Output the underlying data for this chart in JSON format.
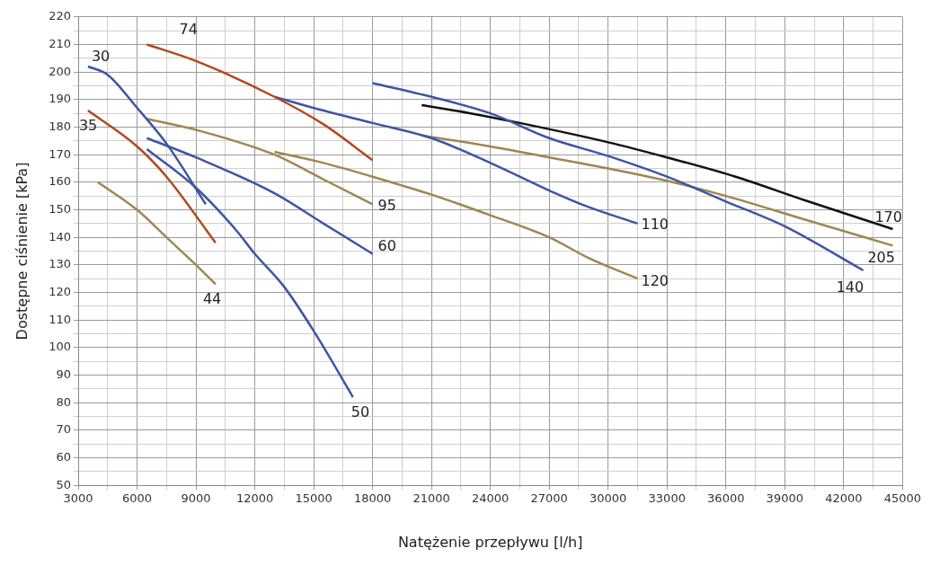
{
  "chart_data": {
    "type": "line",
    "xlabel": "Natężenie przepływu [l/h]",
    "ylabel": "Dostępne ciśnienie [kPa]",
    "xlim": [
      3000,
      45000
    ],
    "xticks": [
      3000,
      {
        "value": 4500,
        "label": null
      },
      6000,
      {
        "value": 7500,
        "label": null
      },
      9000,
      {
        "value": 10500,
        "label": null
      },
      12000,
      {
        "value": 13500,
        "label": null
      },
      15000,
      {
        "value": 16500,
        "label": null
      },
      18000,
      {
        "value": 19500,
        "label": null
      },
      21000,
      {
        "value": 22500,
        "label": null
      },
      24000,
      {
        "value": 25500,
        "label": null
      },
      27000,
      {
        "value": 28500,
        "label": null
      },
      30000,
      {
        "value": 31500,
        "label": null
      },
      33000,
      {
        "value": 34500,
        "label": null
      },
      36000,
      {
        "value": 37500,
        "label": null
      },
      39000,
      {
        "value": 40500,
        "label": null
      },
      42000,
      {
        "value": 43500,
        "label": null
      },
      45000
    ],
    "ylim": [
      50,
      220
    ],
    "yticks": [
      50,
      {
        "value": 55,
        "label": null
      },
      60,
      {
        "value": 65,
        "label": null
      },
      70,
      {
        "value": 75,
        "label": null
      },
      80,
      {
        "value": 85,
        "label": null
      },
      90,
      {
        "value": 95,
        "label": null
      },
      100,
      {
        "value": 105,
        "label": null
      },
      110,
      {
        "value": 115,
        "label": null
      },
      120,
      {
        "value": 125,
        "label": null
      },
      130,
      {
        "value": 135,
        "label": null
      },
      140,
      {
        "value": 145,
        "label": null
      },
      150,
      {
        "value": 155,
        "label": null
      },
      160,
      {
        "value": 165,
        "label": null
      },
      170,
      {
        "value": 175,
        "label": null
      },
      180,
      {
        "value": 185,
        "label": null
      },
      190,
      {
        "value": 195,
        "label": null
      },
      200,
      {
        "value": 205,
        "label": null
      },
      210,
      {
        "value": 215,
        "label": null
      },
      220
    ],
    "grid": true,
    "legend": false,
    "marker": "none",
    "line_style": "solid",
    "series": [
      {
        "name": "30",
        "color": "#3d55a5",
        "x": [
          3500,
          4500,
          6000,
          7500,
          9500
        ],
        "values": [
          202,
          199,
          187,
          174,
          152
        ]
      },
      {
        "name": "35",
        "color": "#b5471e",
        "x": [
          3500,
          6000,
          7500,
          10000
        ],
        "values": [
          186,
          173,
          162,
          138
        ]
      },
      {
        "name": "44",
        "color": "#a08651",
        "x": [
          4000,
          6000,
          7500,
          9000,
          10000
        ],
        "values": [
          160,
          150,
          140,
          130,
          123
        ]
      },
      {
        "name": "74",
        "color": "#b5471e",
        "x": [
          6500,
          9000,
          13000,
          15500,
          18000
        ],
        "values": [
          210,
          204,
          191,
          181,
          168
        ]
      },
      {
        "name": "95",
        "color": "#a08651",
        "x": [
          6500,
          9000,
          13000,
          15500,
          18000
        ],
        "values": [
          183,
          179,
          170,
          161,
          152
        ]
      },
      {
        "name": "60",
        "color": "#3d55a5",
        "x": [
          6500,
          9000,
          13000,
          15500,
          18000
        ],
        "values": [
          176,
          169,
          156,
          145,
          134
        ]
      },
      {
        "name": "50",
        "color": "#3d55a5",
        "x": [
          6500,
          9000,
          11000,
          12000,
          13500,
          15000,
          17000
        ],
        "values": [
          172,
          158,
          143,
          134,
          122,
          106,
          82
        ]
      },
      {
        "name": "110",
        "color": "#3d55a5",
        "x": [
          13000,
          15500,
          18000,
          21000,
          24000,
          27000,
          29000,
          31500
        ],
        "values": [
          191,
          186,
          181.5,
          176,
          167,
          157,
          151,
          145
        ]
      },
      {
        "name": "120",
        "color": "#a08651",
        "x": [
          13000,
          15500,
          18000,
          21000,
          24000,
          27000,
          29000,
          31500
        ],
        "values": [
          171,
          167,
          162,
          155.5,
          148,
          140,
          132.5,
          125
        ]
      },
      {
        "name": "140",
        "color": "#3d55a5",
        "x": [
          18000,
          21000,
          24000,
          27000,
          30000,
          33000,
          36000,
          39000,
          43000
        ],
        "values": [
          196,
          191,
          185,
          176,
          169.5,
          162,
          153,
          144,
          128
        ]
      },
      {
        "name": "170",
        "color": "#111111",
        "x": [
          20500,
          23000,
          25500,
          30000,
          33000,
          36500,
          40000,
          44500
        ],
        "values": [
          188,
          185,
          181.5,
          174.5,
          169,
          162,
          153.5,
          143
        ]
      },
      {
        "name": "205",
        "color": "#a08651",
        "x": [
          20500,
          24000,
          27000,
          30000,
          33000,
          36000,
          40000,
          44500
        ],
        "values": [
          177,
          173,
          169,
          165,
          160.5,
          155,
          146.5,
          137
        ]
      }
    ]
  }
}
